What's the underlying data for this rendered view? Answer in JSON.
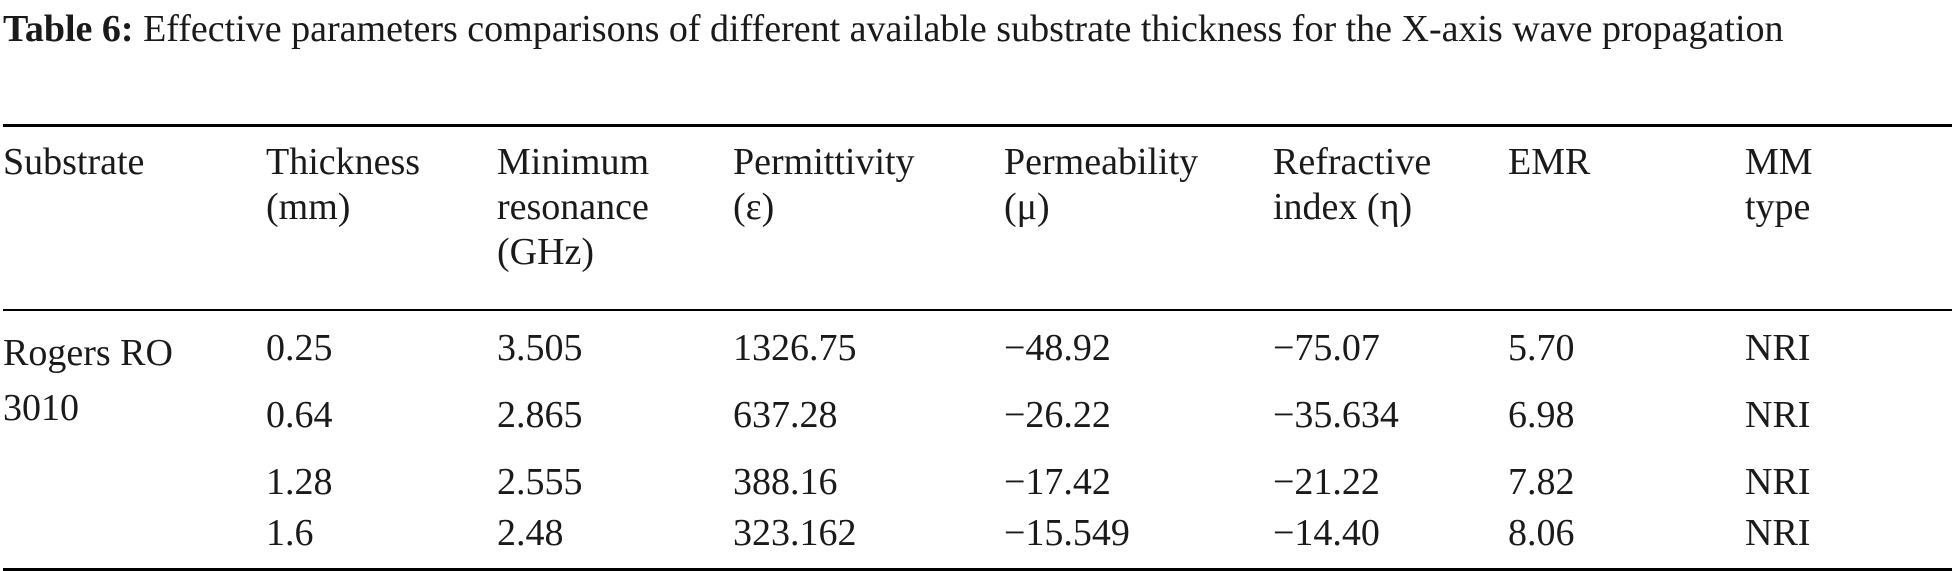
{
  "caption": {
    "label": "Table 6:",
    "text": " Effective parameters comparisons of different available substrate thickness for the X-axis wave propagation"
  },
  "table": {
    "headers": [
      [
        "Substrate"
      ],
      [
        "Thickness",
        "(mm)"
      ],
      [
        "Minimum",
        "resonance",
        "(GHz)"
      ],
      [
        "Permittivity",
        "(ε)"
      ],
      [
        "Permeability",
        "(μ)"
      ],
      [
        "Refractive",
        "index (η)"
      ],
      [
        "EMR"
      ],
      [
        "MM",
        "type"
      ]
    ],
    "substrate": "Rogers RO 3010",
    "rows": [
      {
        "thickness": "0.25",
        "resonance": "3.505",
        "permittivity": "1326.75",
        "permeability": "−48.92",
        "refractive": "−75.07",
        "emr": "5.70",
        "type": "NRI"
      },
      {
        "thickness": "0.64",
        "resonance": "2.865",
        "permittivity": "637.28",
        "permeability": "−26.22",
        "refractive": "−35.634",
        "emr": "6.98",
        "type": "NRI"
      },
      {
        "thickness": "1.28",
        "resonance": "2.555",
        "permittivity": "388.16",
        "permeability": "−17.42",
        "refractive": "−21.22",
        "emr": "7.82",
        "type": "NRI"
      },
      {
        "thickness": "1.6",
        "resonance": "2.48",
        "permittivity": "323.162",
        "permeability": "−15.549",
        "refractive": "−14.40",
        "emr": "8.06",
        "type": "NRI"
      }
    ]
  }
}
